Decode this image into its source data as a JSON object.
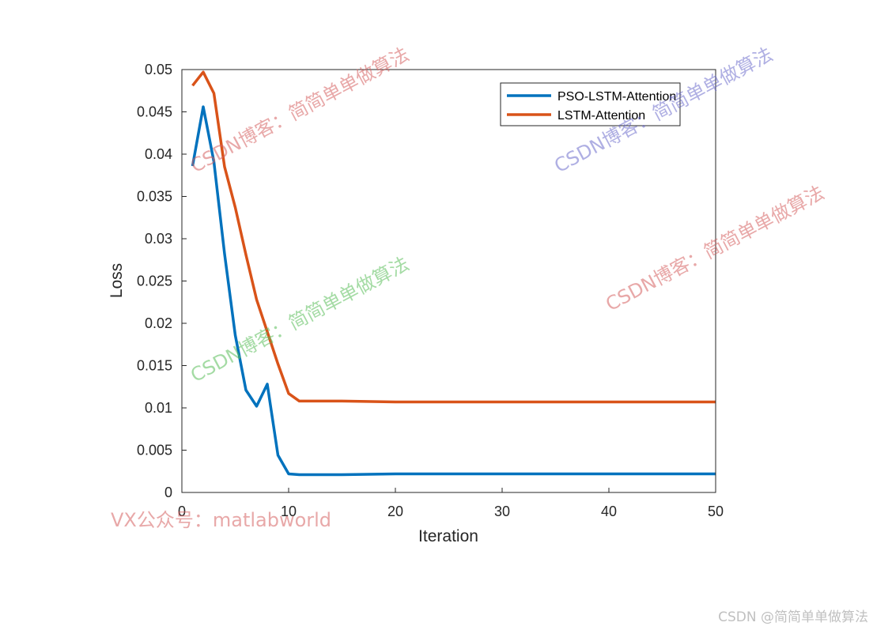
{
  "chart_data": {
    "type": "line",
    "xlabel": "Iteration",
    "ylabel": "Loss",
    "xlim": [
      0,
      50
    ],
    "ylim": [
      0,
      0.05
    ],
    "xticks": [
      "0",
      "10",
      "20",
      "30",
      "40",
      "50"
    ],
    "yticks": [
      "0",
      "0.005",
      "0.01",
      "0.015",
      "0.02",
      "0.025",
      "0.03",
      "0.035",
      "0.04",
      "0.045",
      "0.05"
    ],
    "grid": false,
    "legend_position": "top-right",
    "series": [
      {
        "name": "PSO-LSTM-Attention",
        "color": "#0072BD",
        "x": [
          1,
          2,
          3,
          4,
          5,
          6,
          7,
          8,
          9,
          10,
          11,
          12,
          15,
          20,
          30,
          40,
          50
        ],
        "y": [
          0.0386,
          0.0456,
          0.0391,
          0.0282,
          0.0186,
          0.0121,
          0.0102,
          0.0128,
          0.0044,
          0.0022,
          0.0021,
          0.0021,
          0.0021,
          0.0022,
          0.0022,
          0.0022,
          0.0022
        ]
      },
      {
        "name": "LSTM-Attention",
        "color": "#D95319",
        "x": [
          1,
          2,
          3,
          4,
          5,
          6,
          7,
          8,
          9,
          10,
          11,
          12,
          15,
          20,
          30,
          40,
          50
        ],
        "y": [
          0.0481,
          0.0497,
          0.0472,
          0.0385,
          0.0337,
          0.0281,
          0.0228,
          0.019,
          0.0152,
          0.0117,
          0.0108,
          0.0108,
          0.0108,
          0.0107,
          0.0107,
          0.0107,
          0.0107
        ]
      }
    ]
  },
  "watermarks": [
    "CSDN博客：简简单单做算法",
    "CSDN博客：简简单单做算法",
    "CSDN博客：简简单单做算法",
    "CSDN博客：简简单单做算法",
    "VX公众号：matlabworld"
  ],
  "credit": "CSDN @简简单单做算法"
}
